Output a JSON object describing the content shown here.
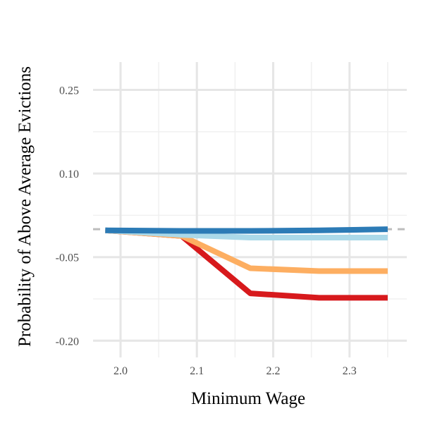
{
  "chart_data": {
    "type": "line",
    "title": "",
    "xlabel": "Minimum Wage",
    "ylabel": "Probability of Above Average Evictions",
    "xlim": [
      1.964,
      2.375
    ],
    "ylim": [
      -0.23,
      0.3
    ],
    "x_ticks": [
      2.0,
      2.1,
      2.2,
      2.3
    ],
    "x_tick_labels": [
      "2.0",
      "2.1",
      "2.2",
      "2.3"
    ],
    "y_ticks": [
      -0.2,
      -0.05,
      0.1,
      0.25
    ],
    "y_tick_labels": [
      "-0.20",
      "-0.05",
      "0.10",
      "0.25"
    ],
    "reference_line": {
      "y": 0.0,
      "style": "dashed",
      "color": "#bdbdbd"
    },
    "grid": true,
    "legend": "none",
    "series": [
      {
        "color": "#2c7bb6",
        "x": [
          1.98,
          2.08,
          2.17,
          2.26,
          2.35
        ],
        "y": [
          -0.002,
          -0.003,
          -0.003,
          -0.002,
          0.0
        ]
      },
      {
        "color": "#abd9e9",
        "x": [
          1.98,
          2.08,
          2.17,
          2.26,
          2.35
        ],
        "y": [
          -0.002,
          -0.01,
          -0.015,
          -0.015,
          -0.015
        ]
      },
      {
        "color": "#fdae61",
        "x": [
          1.98,
          2.08,
          2.17,
          2.26,
          2.35
        ],
        "y": [
          -0.002,
          -0.012,
          -0.07,
          -0.075,
          -0.075
        ]
      },
      {
        "color": "#d7191c",
        "x": [
          1.98,
          2.08,
          2.17,
          2.26,
          2.35
        ],
        "y": [
          -0.002,
          -0.012,
          -0.115,
          -0.123,
          -0.123
        ]
      }
    ]
  }
}
